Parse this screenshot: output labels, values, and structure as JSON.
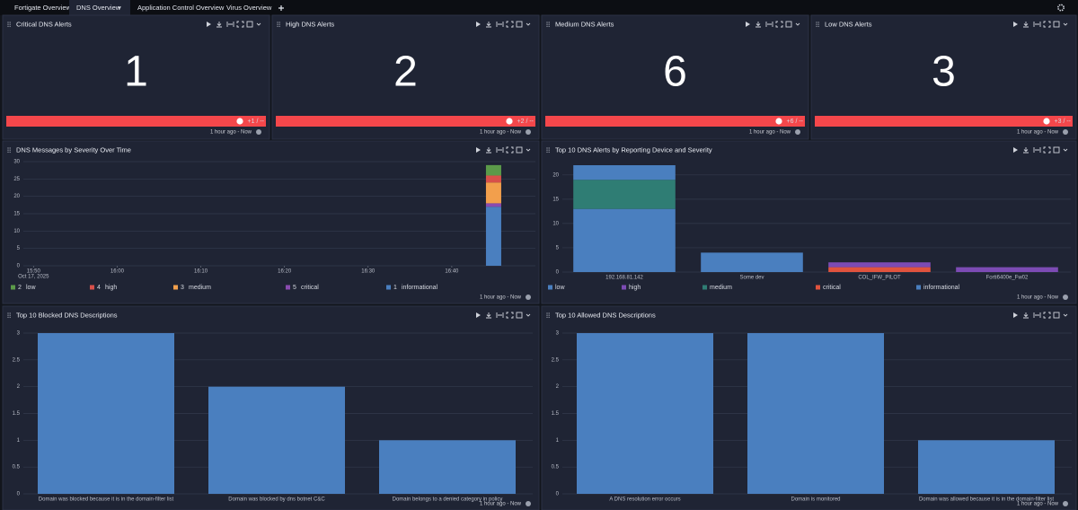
{
  "tabs": [
    "Fortigate Overview",
    "DNS Overview",
    "Application Control Overview",
    "Virus Overview"
  ],
  "active_tab": 1,
  "time_range": "1 hour ago - Now",
  "stat_panels": [
    {
      "title": "Critical DNS Alerts",
      "value": 1,
      "change": "+1 / --"
    },
    {
      "title": "High DNS Alerts",
      "value": 2,
      "change": "+2 / --"
    },
    {
      "title": "Medium DNS Alerts",
      "value": 6,
      "change": "+6 / --"
    },
    {
      "title": "Low DNS Alerts",
      "value": 3,
      "change": "+3 / --"
    }
  ],
  "chart_data": [
    {
      "type": "time_bar",
      "stacked": true,
      "title": "DNS Messages by Severity Over Time",
      "x": [
        "16:45"
      ],
      "x_date_label": "Oct 17, 2025",
      "xlim": [
        "15:49",
        "16:50"
      ],
      "xticks": [
        "15:50",
        "16:00",
        "16:10",
        "16:20",
        "16:30",
        "16:40"
      ],
      "ylim": [
        0,
        30
      ],
      "yticks": [
        0,
        5,
        10,
        15,
        20,
        25,
        30
      ],
      "grid": true,
      "series": [
        {
          "name": "low",
          "count": 2,
          "color": "#5b9a49",
          "values": [
            3
          ]
        },
        {
          "name": "high",
          "count": 4,
          "color": "#d8504a",
          "values": [
            2
          ]
        },
        {
          "name": "medium",
          "count": 3,
          "color": "#f29f4c",
          "values": [
            6
          ]
        },
        {
          "name": "critical",
          "count": 5,
          "color": "#8a4bb0",
          "values": [
            1
          ]
        },
        {
          "name": "informational",
          "count": 1,
          "color": "#4a7fbf",
          "values": [
            17
          ]
        }
      ]
    },
    {
      "type": "bar",
      "stacked": true,
      "title": "Top 10 DNS Alerts by Reporting Device and Severity",
      "categories": [
        "192.168.81.142",
        "Some dev",
        "COL_IFW_PILOT",
        "Forti6400e_Fw02"
      ],
      "ylim": [
        0,
        22
      ],
      "yticks": [
        0,
        5,
        10,
        15,
        20
      ],
      "grid": true,
      "series": [
        {
          "name": "low",
          "color": "#4a7fbf",
          "values": [
            3,
            0,
            0,
            0
          ]
        },
        {
          "name": "high",
          "color": "#7c4bb4",
          "values": [
            0,
            0,
            1,
            1
          ]
        },
        {
          "name": "medium",
          "color": "#2f7d74",
          "values": [
            6,
            0,
            0,
            0
          ]
        },
        {
          "name": "critical",
          "color": "#e0533e",
          "values": [
            0,
            0,
            1,
            0
          ]
        },
        {
          "name": "informational",
          "color": "#4a7fbf",
          "values": [
            13,
            4,
            0,
            0
          ]
        }
      ]
    },
    {
      "type": "bar",
      "title": "Top 10 Blocked DNS Descriptions",
      "categories": [
        "Domain was blocked because it is in the domain-filter list",
        "Domain was blocked by dns botnet C&C",
        "Domain belongs to a denied category in policy"
      ],
      "values": [
        3,
        2,
        1
      ],
      "color": "#4a7fbf",
      "ylim": [
        0,
        3
      ],
      "yticks": [
        0,
        0.5,
        1,
        1.5,
        2,
        2.5,
        3
      ],
      "grid": true
    },
    {
      "type": "bar",
      "title": "Top 10 Allowed DNS Descriptions",
      "categories": [
        "A DNS resolution error occurs",
        "Domain is monitored",
        "Domain was allowed because it is in the domain-filter list"
      ],
      "values": [
        3,
        3,
        1
      ],
      "color": "#4a7fbf",
      "ylim": [
        0,
        3
      ],
      "yticks": [
        0,
        0.5,
        1,
        1.5,
        2,
        2.5,
        3
      ],
      "grid": true
    }
  ]
}
